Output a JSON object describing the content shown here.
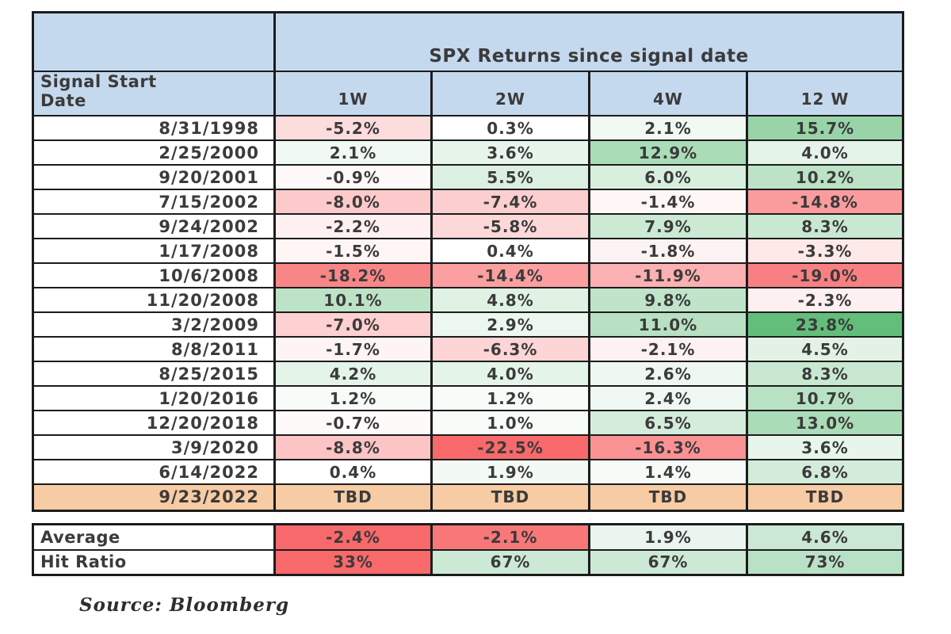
{
  "table": {
    "title": "SPX Returns since signal date",
    "row_header": "Signal Start\nDate",
    "columns": [
      "1W",
      "2W",
      "4W",
      "12 W"
    ],
    "rows": [
      {
        "date": "8/31/1998",
        "cells": [
          {
            "text": "-5.2%",
            "bg": "#FDDCDD"
          },
          {
            "text": "0.3%",
            "bg": "#FEFFFE"
          },
          {
            "text": "2.1%",
            "bg": "#F1F9F3"
          },
          {
            "text": "15.7%",
            "bg": "#98D4A8"
          }
        ]
      },
      {
        "date": "2/25/2000",
        "cells": [
          {
            "text": "2.1%",
            "bg": "#F1F9F3"
          },
          {
            "text": "3.6%",
            "bg": "#E7F5EB"
          },
          {
            "text": "12.9%",
            "bg": "#AADCB7"
          },
          {
            "text": "4.0%",
            "bg": "#E5F4E9"
          }
        ]
      },
      {
        "date": "9/20/2001",
        "cells": [
          {
            "text": "-0.9%",
            "bg": "#FFF8F8"
          },
          {
            "text": "5.5%",
            "bg": "#DBF0E1"
          },
          {
            "text": "6.0%",
            "bg": "#D8EFDE"
          },
          {
            "text": "10.2%",
            "bg": "#BCE3C6"
          }
        ]
      },
      {
        "date": "7/15/2002",
        "cells": [
          {
            "text": "-8.0%",
            "bg": "#FDCACB"
          },
          {
            "text": "-7.4%",
            "bg": "#FDCECF"
          },
          {
            "text": "-1.4%",
            "bg": "#FFF6F6"
          },
          {
            "text": "-14.8%",
            "bg": "#FA9C9E"
          }
        ]
      },
      {
        "date": "9/24/2002",
        "cells": [
          {
            "text": "-2.2%",
            "bg": "#FEF0F1"
          },
          {
            "text": "-5.8%",
            "bg": "#FDD8D9"
          },
          {
            "text": "7.9%",
            "bg": "#CBE9D3"
          },
          {
            "text": "8.3%",
            "bg": "#C9E8D1"
          }
        ]
      },
      {
        "date": "1/17/2008",
        "cells": [
          {
            "text": "-1.5%",
            "bg": "#FFF5F5"
          },
          {
            "text": "0.4%",
            "bg": "#FEFFFE"
          },
          {
            "text": "-1.8%",
            "bg": "#FEF3F3"
          },
          {
            "text": "-3.3%",
            "bg": "#FEE9E9"
          }
        ]
      },
      {
        "date": "10/6/2008",
        "cells": [
          {
            "text": "-18.2%",
            "bg": "#F98687"
          },
          {
            "text": "-14.4%",
            "bg": "#FB9FA0"
          },
          {
            "text": "-11.9%",
            "bg": "#FBB0B1"
          },
          {
            "text": "-19.0%",
            "bg": "#F98082"
          }
        ]
      },
      {
        "date": "11/20/2008",
        "cells": [
          {
            "text": "10.1%",
            "bg": "#BDE3C7"
          },
          {
            "text": "4.8%",
            "bg": "#DFF2E4"
          },
          {
            "text": "9.8%",
            "bg": "#BFE4C9"
          },
          {
            "text": "-2.3%",
            "bg": "#FEF0F0"
          }
        ]
      },
      {
        "date": "3/2/2009",
        "cells": [
          {
            "text": "-7.0%",
            "bg": "#FDD0D1"
          },
          {
            "text": "2.9%",
            "bg": "#ECF7EF"
          },
          {
            "text": "11.0%",
            "bg": "#B7E1C2"
          },
          {
            "text": "23.8%",
            "bg": "#63BE7B"
          }
        ]
      },
      {
        "date": "8/8/2011",
        "cells": [
          {
            "text": "-1.7%",
            "bg": "#FEF4F4"
          },
          {
            "text": "-6.3%",
            "bg": "#FDD5D6"
          },
          {
            "text": "-2.1%",
            "bg": "#FEF1F1"
          },
          {
            "text": "4.5%",
            "bg": "#E2F3E6"
          }
        ]
      },
      {
        "date": "8/25/2015",
        "cells": [
          {
            "text": "4.2%",
            "bg": "#E4F4E8"
          },
          {
            "text": "4.0%",
            "bg": "#E5F4E9"
          },
          {
            "text": "2.6%",
            "bg": "#EEF8F1"
          },
          {
            "text": "8.3%",
            "bg": "#C9E8D1"
          }
        ]
      },
      {
        "date": "1/20/2016",
        "cells": [
          {
            "text": "1.2%",
            "bg": "#F7FCF8"
          },
          {
            "text": "1.2%",
            "bg": "#F7FCF8"
          },
          {
            "text": "2.4%",
            "bg": "#EFF8F2"
          },
          {
            "text": "10.7%",
            "bg": "#B9E2C4"
          }
        ]
      },
      {
        "date": "12/20/2018",
        "cells": [
          {
            "text": "-0.7%",
            "bg": "#FFFAFA"
          },
          {
            "text": "1.0%",
            "bg": "#F8FCF9"
          },
          {
            "text": "6.5%",
            "bg": "#D4EDDB"
          },
          {
            "text": "13.0%",
            "bg": "#AADCB7"
          }
        ]
      },
      {
        "date": "3/9/2020",
        "cells": [
          {
            "text": "-8.8%",
            "bg": "#FCC4C5"
          },
          {
            "text": "-22.5%",
            "bg": "#F8696B"
          },
          {
            "text": "-16.3%",
            "bg": "#FA9294"
          },
          {
            "text": "3.6%",
            "bg": "#E7F5EB"
          }
        ]
      },
      {
        "date": "6/14/2022",
        "cells": [
          {
            "text": "0.4%",
            "bg": "#FEFFFE"
          },
          {
            "text": "1.9%",
            "bg": "#F3FAF4"
          },
          {
            "text": "1.4%",
            "bg": "#F6FBF7"
          },
          {
            "text": "6.8%",
            "bg": "#D2ECD9"
          }
        ]
      }
    ],
    "pending_row": {
      "date": "9/23/2022",
      "bg": "#F7CBA3",
      "cells": [
        {
          "text": "TBD",
          "bg": "#F7CBA3"
        },
        {
          "text": "TBD",
          "bg": "#F7CBA3"
        },
        {
          "text": "TBD",
          "bg": "#F7CBA3"
        },
        {
          "text": "TBD",
          "bg": "#F7CBA3"
        }
      ]
    }
  },
  "summary": {
    "rows": [
      {
        "label": "Average",
        "cells": [
          {
            "text": "-2.4%",
            "bg": "#F8696B"
          },
          {
            "text": "-2.1%",
            "bg": "#F87779"
          },
          {
            "text": "1.9%",
            "bg": "#E9F5EE"
          },
          {
            "text": "4.6%",
            "bg": "#CBE8D4"
          }
        ]
      },
      {
        "label": "Hit Ratio",
        "cells": [
          {
            "text": "33%",
            "bg": "#F8696B"
          },
          {
            "text": "67%",
            "bg": "#CCE9D5"
          },
          {
            "text": "67%",
            "bg": "#CCE9D5"
          },
          {
            "text": "73%",
            "bg": "#B9E1C6"
          }
        ]
      }
    ]
  },
  "source": "Source: Bloomberg",
  "colors": {
    "header_bg": "#C5D9EE",
    "pending_bg": "#F7CBA3",
    "border": "#1c1c1c",
    "negative_extreme": "#F8696B",
    "positive_extreme": "#63BE7B"
  },
  "chart_data": {
    "type": "table",
    "title": "SPX Returns since signal date",
    "row_label": "Signal Start Date",
    "columns": [
      "1W",
      "2W",
      "4W",
      "12 W"
    ],
    "units": "percent",
    "rows": [
      {
        "date": "8/31/1998",
        "values": [
          -5.2,
          0.3,
          2.1,
          15.7
        ]
      },
      {
        "date": "2/25/2000",
        "values": [
          2.1,
          3.6,
          12.9,
          4.0
        ]
      },
      {
        "date": "9/20/2001",
        "values": [
          -0.9,
          5.5,
          6.0,
          10.2
        ]
      },
      {
        "date": "7/15/2002",
        "values": [
          -8.0,
          -7.4,
          -1.4,
          -14.8
        ]
      },
      {
        "date": "9/24/2002",
        "values": [
          -2.2,
          -5.8,
          7.9,
          8.3
        ]
      },
      {
        "date": "1/17/2008",
        "values": [
          -1.5,
          0.4,
          -1.8,
          -3.3
        ]
      },
      {
        "date": "10/6/2008",
        "values": [
          -18.2,
          -14.4,
          -11.9,
          -19.0
        ]
      },
      {
        "date": "11/20/2008",
        "values": [
          10.1,
          4.8,
          9.8,
          -2.3
        ]
      },
      {
        "date": "3/2/2009",
        "values": [
          -7.0,
          2.9,
          11.0,
          23.8
        ]
      },
      {
        "date": "8/8/2011",
        "values": [
          -1.7,
          -6.3,
          -2.1,
          4.5
        ]
      },
      {
        "date": "8/25/2015",
        "values": [
          4.2,
          4.0,
          2.6,
          8.3
        ]
      },
      {
        "date": "1/20/2016",
        "values": [
          1.2,
          1.2,
          2.4,
          10.7
        ]
      },
      {
        "date": "12/20/2018",
        "values": [
          -0.7,
          1.0,
          6.5,
          13.0
        ]
      },
      {
        "date": "3/9/2020",
        "values": [
          -8.8,
          -22.5,
          -16.3,
          3.6
        ]
      },
      {
        "date": "6/14/2022",
        "values": [
          0.4,
          1.9,
          1.4,
          6.8
        ]
      },
      {
        "date": "9/23/2022",
        "values": [
          "TBD",
          "TBD",
          "TBD",
          "TBD"
        ]
      }
    ],
    "average": [
      -2.4,
      -2.1,
      1.9,
      4.6
    ],
    "hit_ratio": [
      33,
      67,
      67,
      73
    ],
    "layout_hints": "heatmap coloring: red for negative returns, green for positive; pending row highlighted orange"
  }
}
